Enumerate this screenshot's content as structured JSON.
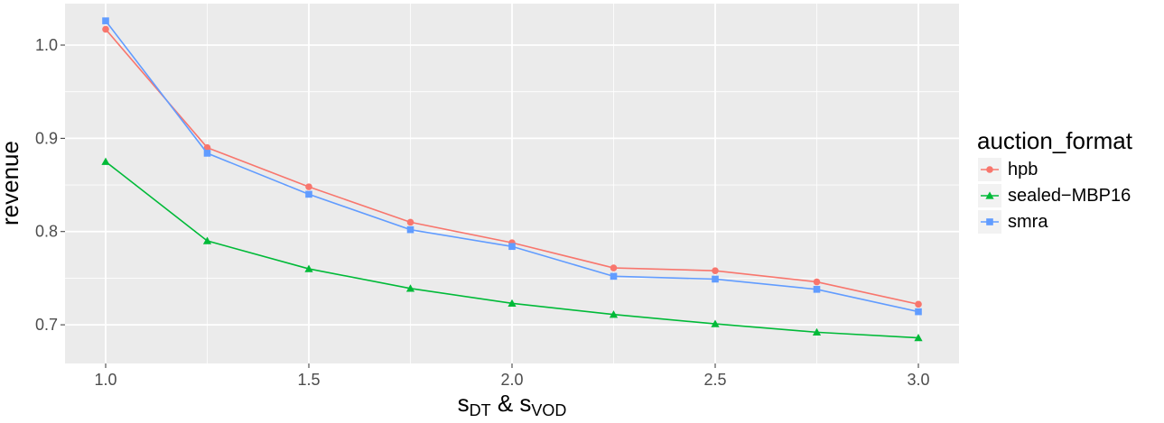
{
  "chart_data": {
    "type": "line",
    "x": [
      1.0,
      1.25,
      1.5,
      1.75,
      2.0,
      2.25,
      2.5,
      2.75,
      3.0
    ],
    "series": [
      {
        "name": "hpb",
        "values": [
          1.017,
          0.89,
          0.848,
          0.81,
          0.788,
          0.761,
          0.758,
          0.746,
          0.722
        ],
        "color": "#F8766D",
        "marker": "circle"
      },
      {
        "name": "sealed−MBP16",
        "values": [
          0.875,
          0.79,
          0.76,
          0.739,
          0.723,
          0.711,
          0.701,
          0.692,
          0.686
        ],
        "color": "#00BA38",
        "marker": "triangle"
      },
      {
        "name": "smra",
        "values": [
          1.026,
          0.884,
          0.84,
          0.802,
          0.784,
          0.752,
          0.749,
          0.738,
          0.714
        ],
        "color": "#619CFF",
        "marker": "square"
      }
    ],
    "xlabel": {
      "main": "s",
      "sub1": "DT",
      "amp": " & ",
      "main2": "s",
      "sub2": "VOD"
    },
    "ylabel": "revenue",
    "xlim": [
      0.9,
      3.1
    ],
    "ylim": [
      0.6585,
      1.0445
    ],
    "x_ticks": [
      1.0,
      1.5,
      2.0,
      2.5,
      3.0
    ],
    "x_tick_labels": [
      "1.0",
      "1.5",
      "2.0",
      "2.5",
      "3.0"
    ],
    "y_ticks": [
      0.7,
      0.8,
      0.9,
      1.0
    ],
    "y_tick_labels": [
      "0.7",
      "0.8",
      "0.9",
      "1.0"
    ],
    "grid": true,
    "legend": {
      "title": "auction_format",
      "placement": "right"
    },
    "panel_background": "#EBEBEB",
    "grid_color": "#FFFFFF"
  }
}
